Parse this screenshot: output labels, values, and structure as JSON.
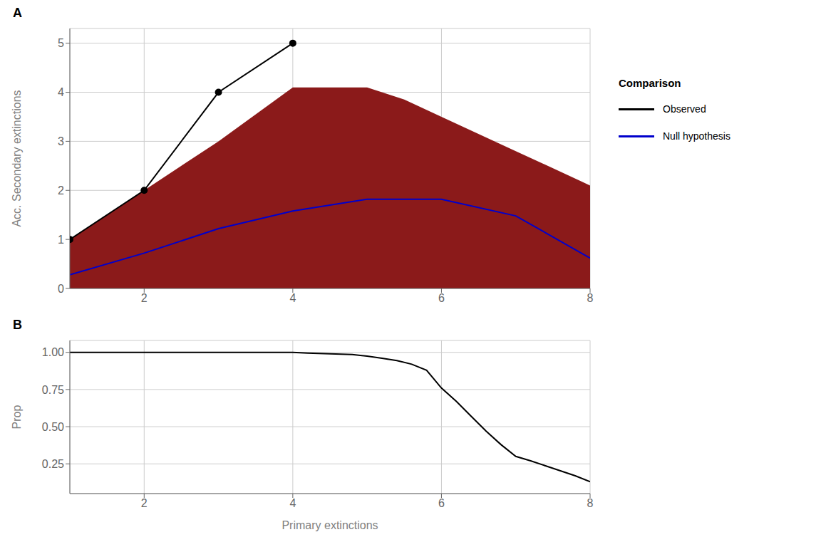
{
  "chart_data": [
    {
      "type": "line",
      "title": "A",
      "ylabel": "Acc. Secondary extinctions",
      "xlim": [
        1,
        8
      ],
      "xticks": [
        2,
        4,
        6,
        8
      ],
      "ylim": [
        0,
        5.3
      ],
      "yticks": [
        0,
        1,
        2,
        3,
        4,
        5
      ],
      "grid": true,
      "legend": "right",
      "legend_title": "Comparison",
      "series": [
        {
          "type": "area",
          "color": "#8B1A1A",
          "x": [
            1,
            2,
            3,
            4,
            5,
            5.5,
            6,
            7,
            8
          ],
          "values": [
            1.0,
            2.0,
            3.0,
            4.1,
            4.1,
            3.85,
            3.5,
            2.8,
            2.1
          ],
          "lower": [
            0.0,
            0.0,
            0.0,
            0.0,
            0.0,
            0.0,
            0.0,
            0.0,
            0.0
          ]
        },
        {
          "type": "line",
          "name": "Null hypothesis",
          "color": "#0000CC",
          "x": [
            1,
            2,
            3,
            4,
            5,
            6,
            7,
            8
          ],
          "values": [
            0.28,
            0.72,
            1.22,
            1.58,
            1.82,
            1.82,
            1.48,
            0.62
          ]
        },
        {
          "type": "line",
          "name": "Observed",
          "color": "#000000",
          "marker": "circle",
          "x": [
            1,
            2,
            3,
            4
          ],
          "values": [
            1,
            2,
            4,
            5
          ]
        }
      ]
    },
    {
      "type": "line",
      "title": "B",
      "xlabel": "Primary extinctions",
      "ylabel": "Prop",
      "xlim": [
        1,
        8
      ],
      "xticks": [
        2,
        4,
        6,
        8
      ],
      "ylim": [
        0.05,
        1.08
      ],
      "yticks": [
        0.25,
        {
          "value": 0.5,
          "label": "0.50"
        },
        0.75,
        {
          "value": 1,
          "label": "1.00"
        }
      ],
      "grid": true,
      "color": "#000000",
      "x": [
        1,
        1.2,
        1.5,
        2,
        2.5,
        3,
        3.5,
        4,
        4.2,
        4.5,
        4.8,
        5,
        5.2,
        5.4,
        5.6,
        5.8,
        6,
        6.2,
        6.4,
        6.6,
        6.8,
        7,
        7.2,
        7.5,
        7.8,
        8
      ],
      "values": [
        1.0,
        1.0,
        1.0,
        1.0,
        1.0,
        1.0,
        1.0,
        1.0,
        0.995,
        0.99,
        0.985,
        0.975,
        0.96,
        0.945,
        0.92,
        0.88,
        0.76,
        0.67,
        0.57,
        0.47,
        0.38,
        0.3,
        0.27,
        0.22,
        0.17,
        0.13
      ]
    }
  ]
}
